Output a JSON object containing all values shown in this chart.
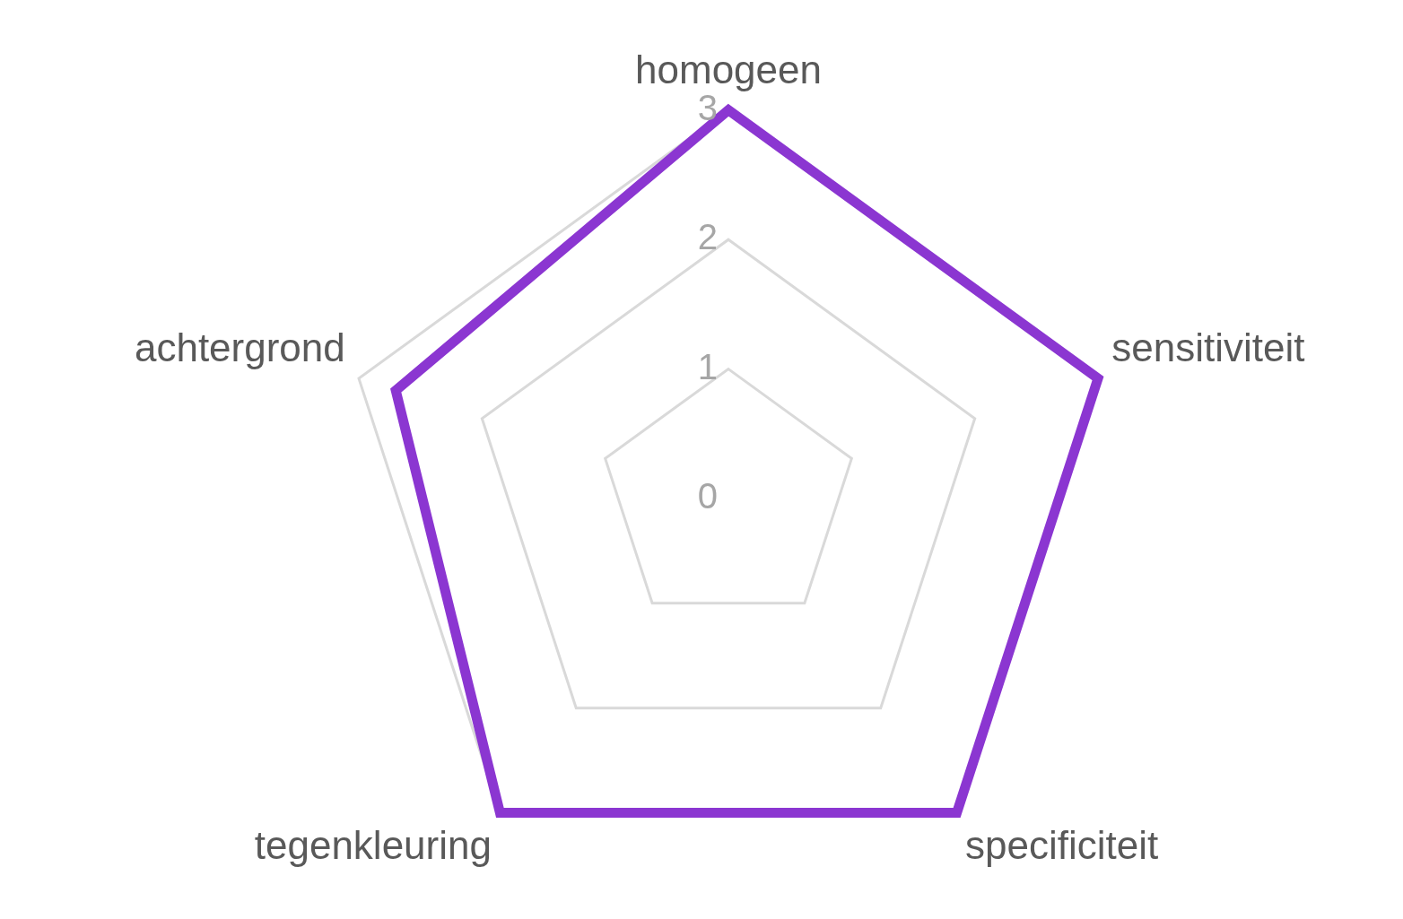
{
  "chart_data": {
    "type": "radar",
    "categories": [
      "homogeen",
      "sensitiviteit",
      "specificiteit",
      "tegenkleuring",
      "achtergrond"
    ],
    "series": [
      {
        "color": "#8b36d1",
        "values": [
          3,
          3,
          3,
          3,
          2.7
        ]
      }
    ],
    "ylim": [
      0,
      3
    ],
    "yticks": [
      0,
      1,
      2,
      3
    ],
    "grid": true,
    "legend": false,
    "marker": "none"
  }
}
